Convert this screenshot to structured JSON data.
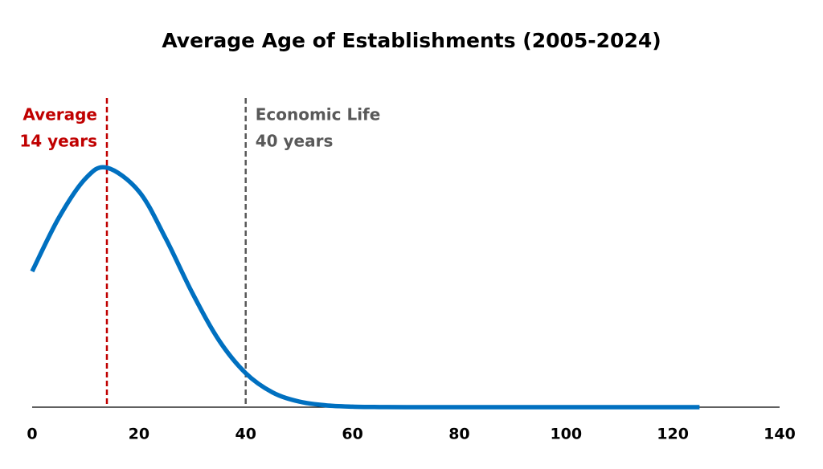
{
  "chart_data": {
    "type": "line",
    "title": "Average Age of Establishments (2005-2024)",
    "x": [
      0,
      5,
      10,
      14,
      20,
      25,
      30,
      35,
      40,
      45,
      50,
      55,
      60,
      65,
      70,
      80,
      90,
      100,
      110,
      120,
      125
    ],
    "series": [
      {
        "color": "#0070c0",
        "values": [
          0.567,
          0.791,
          0.955,
          1.0,
          0.901,
          0.705,
          0.477,
          0.279,
          0.142,
          0.062,
          0.0235,
          0.0077,
          0.0022,
          0.0005,
          0,
          0,
          0,
          0,
          0,
          0,
          0
        ]
      }
    ],
    "xlim": [
      0,
      140
    ],
    "xticks": [
      0,
      20,
      40,
      60,
      80,
      100,
      120,
      140
    ],
    "ylim": [
      0,
      1.1
    ],
    "reference_lines": [
      {
        "value": 14,
        "label": [
          "Average",
          "14 years"
        ],
        "color": "#c00000"
      },
      {
        "value": 40,
        "label": [
          "Economic Life",
          "40 years"
        ],
        "color": "#595959"
      }
    ]
  }
}
